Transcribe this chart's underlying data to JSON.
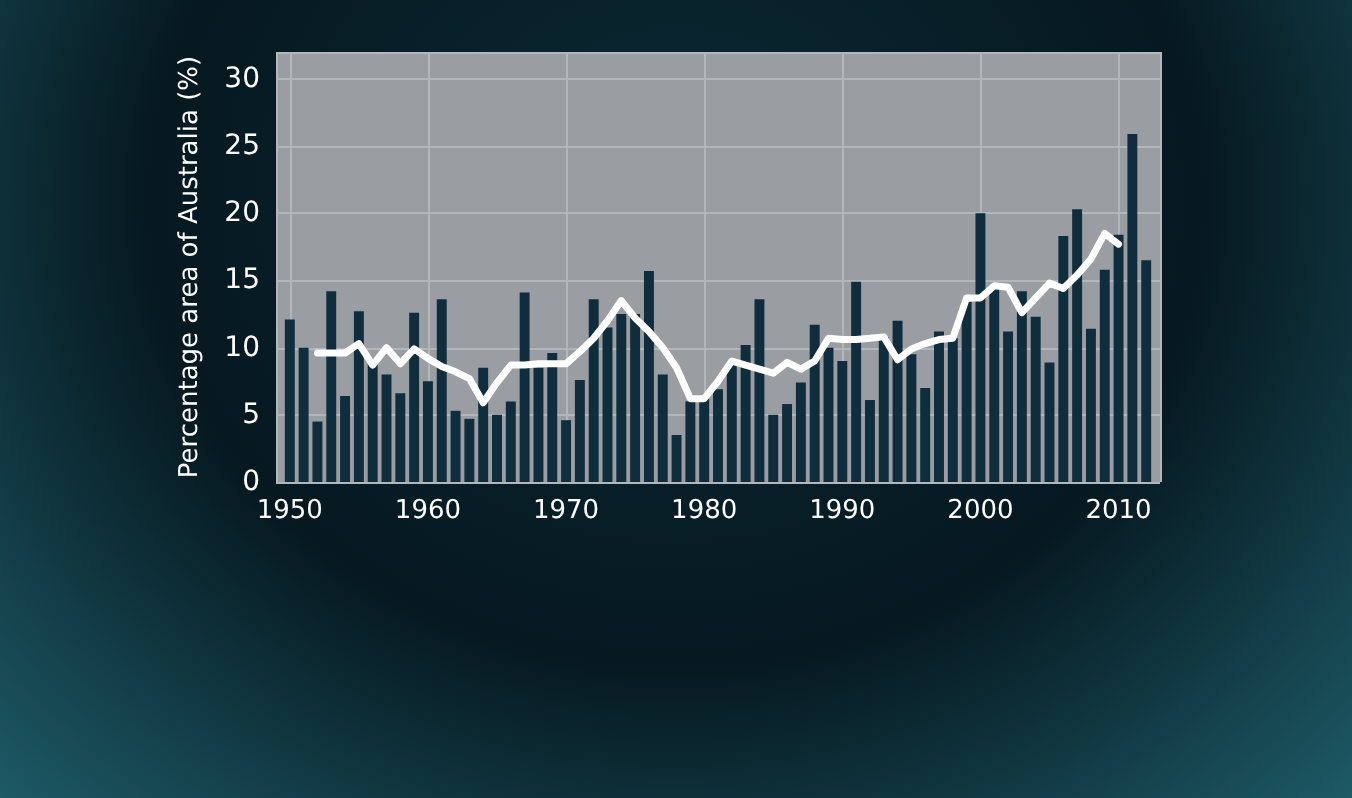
{
  "chart_data": {
    "type": "bar",
    "ylabel": "Percentage area of Australia (%)",
    "x": [
      1950,
      1951,
      1952,
      1953,
      1954,
      1955,
      1956,
      1957,
      1958,
      1959,
      1960,
      1961,
      1962,
      1963,
      1964,
      1965,
      1966,
      1967,
      1968,
      1969,
      1970,
      1971,
      1972,
      1973,
      1974,
      1975,
      1976,
      1977,
      1978,
      1979,
      1980,
      1981,
      1982,
      1983,
      1984,
      1985,
      1986,
      1987,
      1988,
      1989,
      1990,
      1991,
      1992,
      1993,
      1994,
      1995,
      1996,
      1997,
      1998,
      1999,
      2000,
      2001,
      2002,
      2003,
      2004,
      2005,
      2006,
      2007,
      2008,
      2009,
      2010,
      2011,
      2012
    ],
    "series": [
      {
        "color": "#0f2d3d",
        "values": [
          12.1,
          10,
          4.5,
          14.2,
          6.4,
          12.7,
          9,
          8,
          6.6,
          12.6,
          7.5,
          13.6,
          5.3,
          4.7,
          8.5,
          5,
          6,
          14.1,
          8.5,
          9.6,
          4.6,
          7.6,
          13.6,
          11.5,
          12.5,
          12.5,
          15.7,
          8,
          3.5,
          6,
          6.2,
          6.9,
          8.7,
          10.2,
          13.6,
          5,
          5.8,
          7.4,
          11.7,
          10,
          9,
          14.9,
          6.1,
          10.8,
          12,
          9.5,
          7,
          11.2,
          10.7,
          13.4,
          20,
          14.4,
          11.2,
          14.2,
          12.3,
          8.9,
          18.3,
          20.3,
          11.4,
          15.8,
          18.4,
          25.9,
          16.5
        ]
      },
      {
        "type": "line",
        "color": "#ffffff",
        "values": [
          null,
          null,
          9.6,
          9.6,
          9.6,
          10.3,
          8.7,
          10,
          8.8,
          9.9,
          9.2,
          8.6,
          8.2,
          7.7,
          5.9,
          7.4,
          8.7,
          8.7,
          8.8,
          8.8,
          8.8,
          9.7,
          10.7,
          12,
          13.5,
          12.2,
          11.2,
          10,
          8.5,
          6.2,
          6.2,
          7.5,
          9,
          8.7,
          8.4,
          8.1,
          8.9,
          8.4,
          9,
          10.7,
          10.6,
          10.6,
          10.7,
          10.8,
          9.1,
          9.9,
          10.3,
          10.6,
          10.7,
          13.7,
          13.7,
          14.6,
          14.5,
          12.6,
          13.7,
          14.8,
          14.4,
          15.4,
          16.6,
          18.5,
          17.7,
          null,
          null
        ]
      }
    ],
    "xlim": [
      1949,
      2013
    ],
    "xticks": [
      1950,
      1960,
      1970,
      1980,
      1990,
      2000,
      2010
    ],
    "ylim": [
      0,
      32
    ],
    "yticks": [
      0,
      5,
      10,
      15,
      20,
      25,
      30
    ],
    "grid": true,
    "marker": "none",
    "line_style": "solid"
  }
}
